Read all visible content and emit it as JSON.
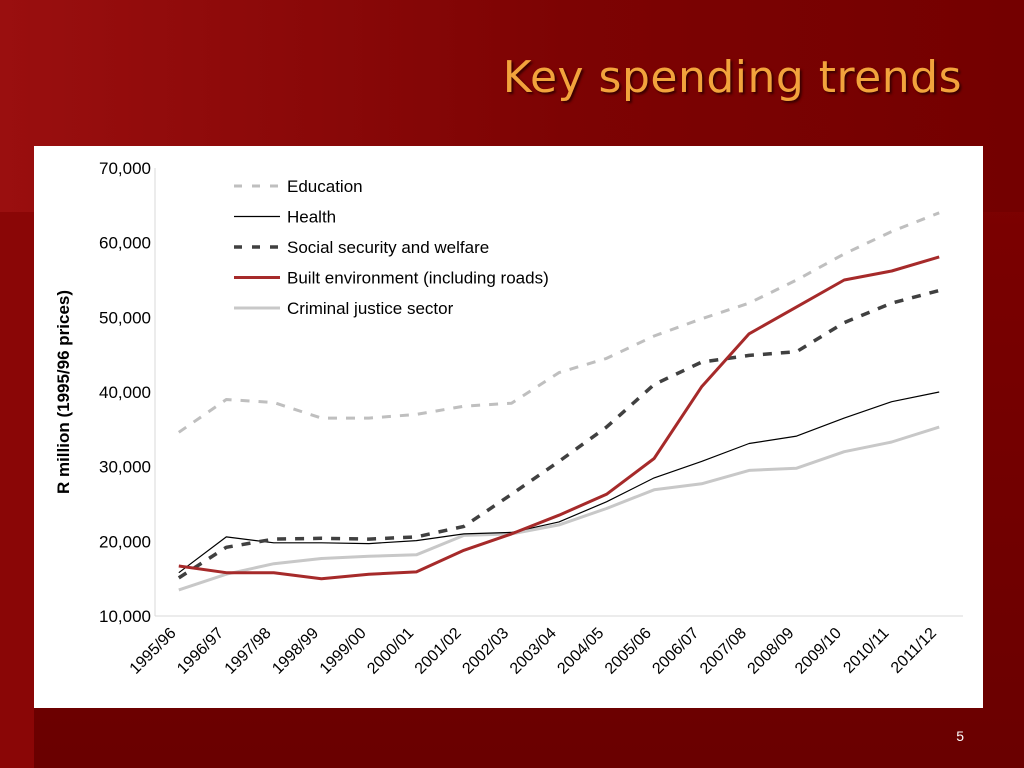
{
  "slide": {
    "title": "Key spending trends",
    "page_number": "5"
  },
  "colors": {
    "title": "#f2a33c",
    "background": "#7a0000",
    "panel": "#ffffff"
  },
  "chart_data": {
    "type": "line",
    "title": "",
    "xlabel": "",
    "ylabel": "R million (1995/96 prices)",
    "ylim": [
      10000,
      70000
    ],
    "yticks": [
      10000,
      20000,
      30000,
      40000,
      50000,
      60000,
      70000
    ],
    "ytick_labels": [
      "10,000",
      "20,000",
      "30,000",
      "40,000",
      "50,000",
      "60,000",
      "70,000"
    ],
    "grid": false,
    "legend_position": "top-left",
    "categories": [
      "1995/96",
      "1996/97",
      "1997/98",
      "1998/99",
      "1999/00",
      "2000/01",
      "2001/02",
      "2002/03",
      "2003/04",
      "2004/05",
      "2005/06",
      "2006/07",
      "2007/08",
      "2008/09",
      "2009/10",
      "2010/11",
      "2011/12"
    ],
    "series": [
      {
        "name": "Education",
        "color": "#bfbfbf",
        "dash": "dashed",
        "values": [
          34600,
          39000,
          38600,
          36500,
          36500,
          37000,
          38100,
          38500,
          42600,
          44500,
          47500,
          49800,
          51900,
          55000,
          58500,
          61500,
          64000
        ]
      },
      {
        "name": "Health",
        "color": "#000000",
        "dash": "solid",
        "values": [
          15800,
          20600,
          19800,
          19800,
          19700,
          20100,
          21000,
          21200,
          22600,
          25300,
          28500,
          30700,
          33100,
          34100,
          36500,
          38700,
          40000
        ]
      },
      {
        "name": "Social security and welfare",
        "color": "#404040",
        "dash": "dashed",
        "values": [
          15100,
          19200,
          20300,
          20400,
          20300,
          20600,
          22000,
          26300,
          30700,
          35300,
          41000,
          44000,
          44900,
          45400,
          49300,
          51900,
          53600
        ]
      },
      {
        "name": "Built environment (including roads)",
        "color": "#a62a2a",
        "dash": "solid",
        "values": [
          16700,
          15800,
          15800,
          15000,
          15600,
          15900,
          18800,
          21000,
          23500,
          26300,
          31100,
          40700,
          47800,
          51400,
          55000,
          56200,
          58100
        ]
      },
      {
        "name": "Criminal justice sector",
        "color": "#c8c8c8",
        "dash": "solid",
        "values": [
          13500,
          15600,
          17000,
          17700,
          18000,
          18200,
          20800,
          21000,
          22200,
          24400,
          26900,
          27700,
          29500,
          29800,
          32000,
          33300,
          35300
        ]
      }
    ]
  }
}
